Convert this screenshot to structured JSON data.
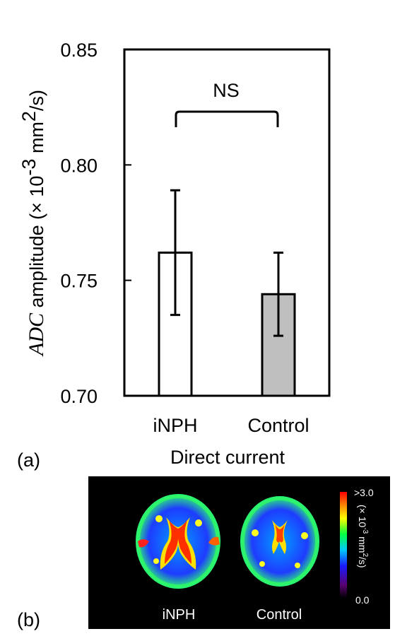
{
  "chart_data": {
    "type": "bar",
    "categories": [
      "iNPH",
      "Control"
    ],
    "values": [
      0.762,
      0.744
    ],
    "errors": [
      0.027,
      0.018
    ],
    "bar_colors": [
      "#ffffff",
      "#bfbfbf"
    ],
    "ylim": [
      0.7,
      0.85
    ],
    "yticks": [
      "0.70",
      "0.75",
      "0.80",
      "0.85"
    ],
    "ylabel_italic": "ADC",
    "ylabel_rest": " amplitude (× 10",
    "ylabel_exp": "-3",
    "ylabel_unit": " mm",
    "ylabel_unit_exp": "2",
    "ylabel_end": "/s)",
    "xlabel": "Direct current",
    "annotation": "NS"
  },
  "panel_labels": {
    "a": "(a)",
    "b": "(b)"
  },
  "brain_images": {
    "captions": [
      "iNPH",
      "Control"
    ],
    "colorbar": {
      "max_label": ">3.0",
      "min_label": "0.0",
      "unit_prefix": "(× 10",
      "unit_exp": "-3",
      "unit_mid": " mm",
      "unit_exp2": "2",
      "unit_end": "/s)"
    }
  }
}
